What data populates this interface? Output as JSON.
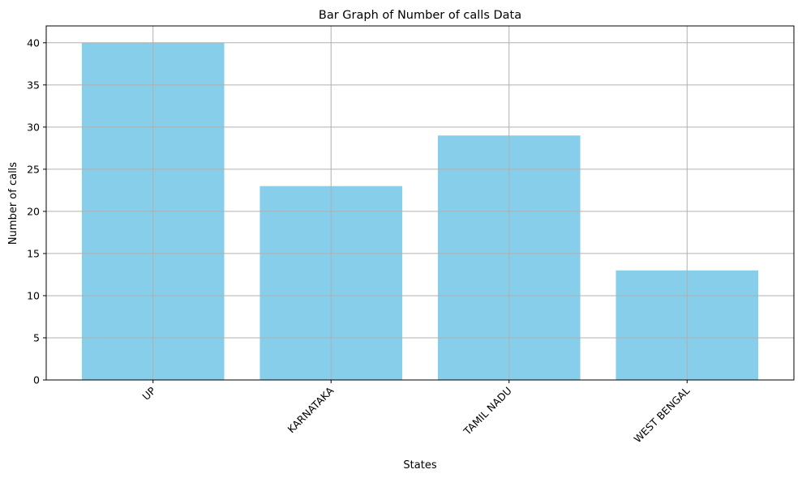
{
  "chart_data": {
    "type": "bar",
    "title": "Bar Graph of Number of calls Data",
    "xlabel": "States",
    "ylabel": "Number of calls",
    "categories": [
      "UP",
      "KARNATAKA",
      "TAMIL NADU",
      "WEST BENGAL"
    ],
    "values": [
      40,
      23,
      29,
      13
    ],
    "ylim": [
      0,
      42
    ],
    "yticks": [
      0,
      5,
      10,
      15,
      20,
      25,
      30,
      35,
      40
    ],
    "grid": true,
    "xtick_rotation": 45,
    "bar_color": "#87CEEB"
  }
}
